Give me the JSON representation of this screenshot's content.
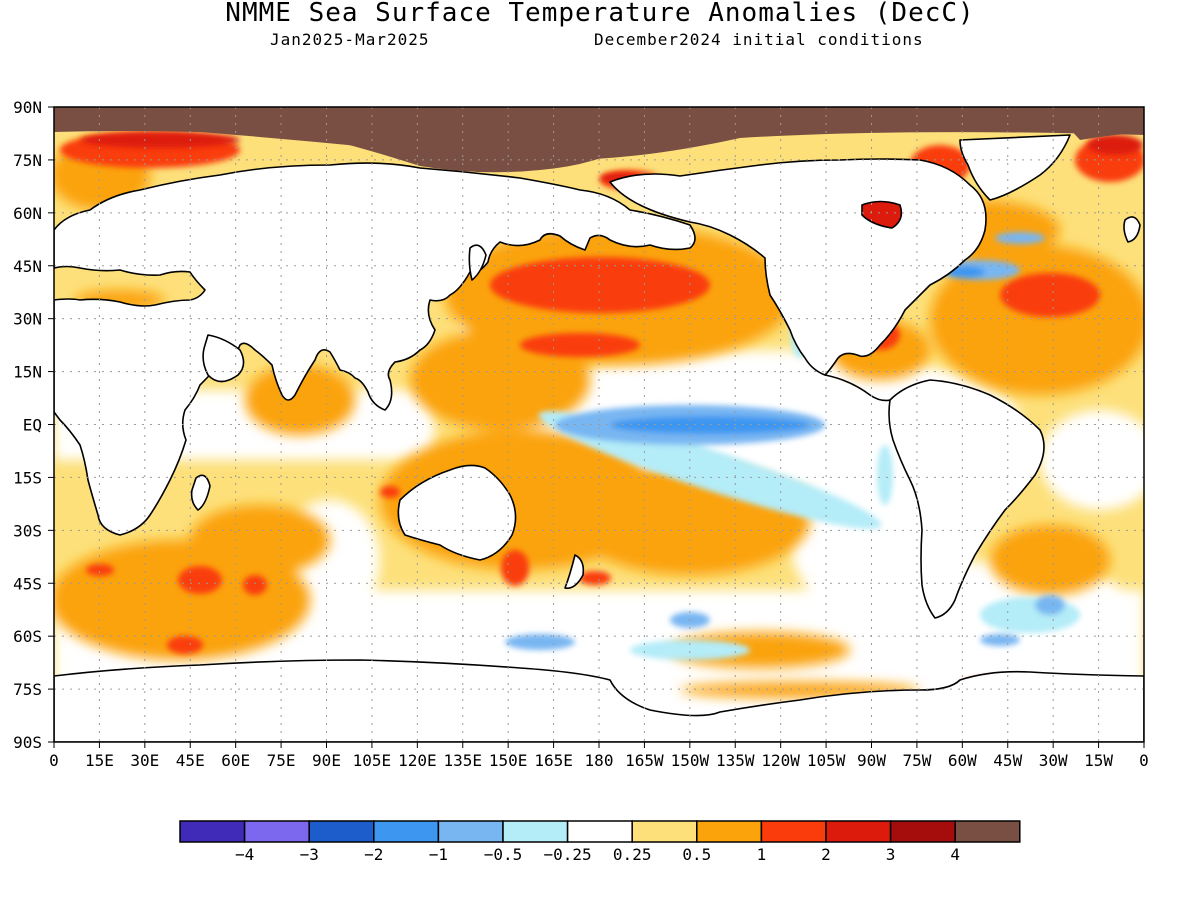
{
  "title": "NMME Sea Surface Temperature Anomalies (DecC)",
  "subtitle_left": "Jan2025-Mar2025",
  "subtitle_right": "December2024 initial conditions",
  "map": {
    "lat_labels": [
      "90N",
      "75N",
      "60N",
      "45N",
      "30N",
      "15N",
      "EQ",
      "15S",
      "30S",
      "45S",
      "60S",
      "75S",
      "90S"
    ],
    "lon_labels": [
      "0",
      "15E",
      "30E",
      "45E",
      "60E",
      "75E",
      "90E",
      "105E",
      "120E",
      "135E",
      "150E",
      "165E",
      "180",
      "165W",
      "150W",
      "135W",
      "120W",
      "105W",
      "90W",
      "75W",
      "60W",
      "45W",
      "30W",
      "15W",
      "0"
    ],
    "grid": true,
    "land_color": "#ffffff",
    "coast_color": "#000000",
    "missing_color": "#7a4f43"
  },
  "colorbar": {
    "colors": [
      "#3f2bb8",
      "#7b68ee",
      "#1c5ccb",
      "#3d96f0",
      "#78b6f2",
      "#b4ecf8",
      "#ffffff",
      "#fde07a",
      "#fba30a",
      "#fa3c0c",
      "#dd1b0c",
      "#a50c0c",
      "#7a4f43"
    ],
    "labels": [
      "-4",
      "-3",
      "-2",
      "-1",
      "-0.5",
      "-0.25",
      "0.25",
      "0.5",
      "1",
      "2",
      "3",
      "4"
    ]
  }
}
